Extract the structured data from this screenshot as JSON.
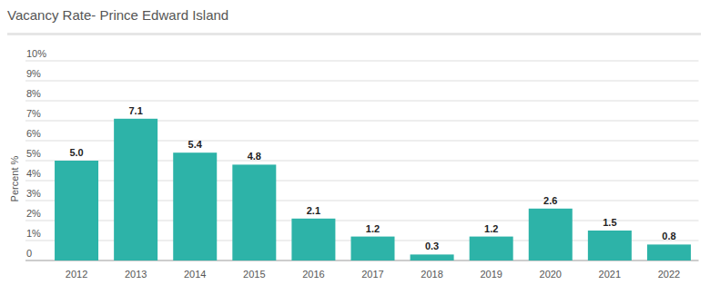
{
  "chart_data": {
    "type": "bar",
    "title": "Vacancy Rate- Prince Edward Island",
    "ylabel": "Percent %",
    "categories": [
      "2012",
      "2013",
      "2014",
      "2015",
      "2016",
      "2017",
      "2018",
      "2019",
      "2020",
      "2021",
      "2022"
    ],
    "values": [
      5.0,
      7.1,
      5.4,
      4.8,
      2.1,
      1.2,
      0.3,
      1.2,
      2.6,
      1.5,
      0.8
    ],
    "value_labels": [
      "5.0",
      "7.1",
      "5.4",
      "4.8",
      "2.1",
      "1.2",
      "0.3",
      "1.2",
      "2.6",
      "1.5",
      "0.8"
    ],
    "color": "#2db3a8",
    "ylim": [
      0,
      10
    ],
    "yticks": [
      0,
      {
        "value": 1,
        "label": "1%"
      },
      {
        "value": 2,
        "label": "2%"
      },
      {
        "value": 3,
        "label": "3%"
      },
      {
        "value": 4,
        "label": "4%"
      },
      {
        "value": 5,
        "label": "5%"
      },
      {
        "value": 6,
        "label": "6%"
      },
      {
        "value": 7,
        "label": "7%"
      },
      {
        "value": 8,
        "label": "8%"
      },
      {
        "value": 9,
        "label": "9%"
      },
      {
        "value": 10,
        "label": "10%"
      }
    ],
    "grid": true,
    "data_labels": true
  }
}
